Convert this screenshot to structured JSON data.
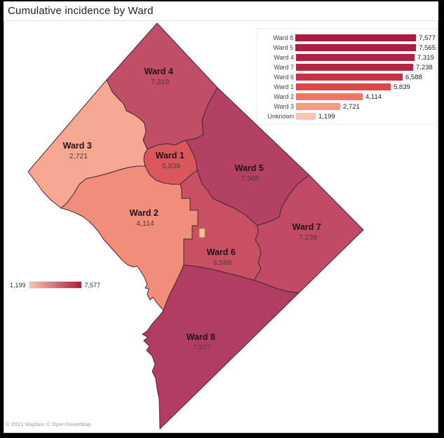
{
  "title": "Cumulative incidence by Ward",
  "attribution": "© 2021 Mapbox © OpenStreetMap",
  "chart_data": {
    "type": "bar",
    "orientation": "horizontal",
    "title": "Cumulative incidence by Ward",
    "categories": [
      "Ward 8",
      "Ward 5",
      "Ward 4",
      "Ward 7",
      "Ward 6",
      "Ward 1",
      "Ward 2",
      "Ward 3",
      "Unknown"
    ],
    "values": [
      7577,
      7565,
      7319,
      7238,
      6588,
      5839,
      4114,
      2721,
      1199
    ],
    "value_labels": [
      "7,577",
      "7,565",
      "7,319",
      "7,238",
      "6,588",
      "5,839",
      "4,114",
      "2,721",
      "1,199"
    ],
    "bar_colors": [
      "#a91e3e",
      "#aa1f3f",
      "#b22342",
      "#b52544",
      "#c93147",
      "#dc4848",
      "#ef7660",
      "#f49b83",
      "#f8c4b3"
    ],
    "xlim": [
      0,
      7577
    ],
    "legend_position": "top-right",
    "gradient_legend": {
      "min_label": "1,199",
      "max_label": "7,577",
      "min_color": "#f8c4b3",
      "max_color": "#a91e3e"
    }
  },
  "map": {
    "region": "District of Columbia wards",
    "wards": {
      "ward1": {
        "label": "Ward 1",
        "value": "5,839",
        "color": "#db575e"
      },
      "ward2": {
        "label": "Ward 2",
        "value": "4,114",
        "color": "#f18d7b"
      },
      "ward3": {
        "label": "Ward 3",
        "value": "2,721",
        "color": "#f7a892"
      },
      "ward4": {
        "label": "Ward 4",
        "value": "7,319",
        "color": "#c14e67"
      },
      "ward5": {
        "label": "Ward 5",
        "value": "7,565",
        "color": "#b34163"
      },
      "ward6": {
        "label": "Ward 6",
        "value": "6,588",
        "color": "#c94f62"
      },
      "ward7": {
        "label": "Ward 7",
        "value": "7,238",
        "color": "#c14b66"
      },
      "ward8": {
        "label": "Ward 8",
        "value": "7,577",
        "color": "#b13e62"
      }
    }
  }
}
